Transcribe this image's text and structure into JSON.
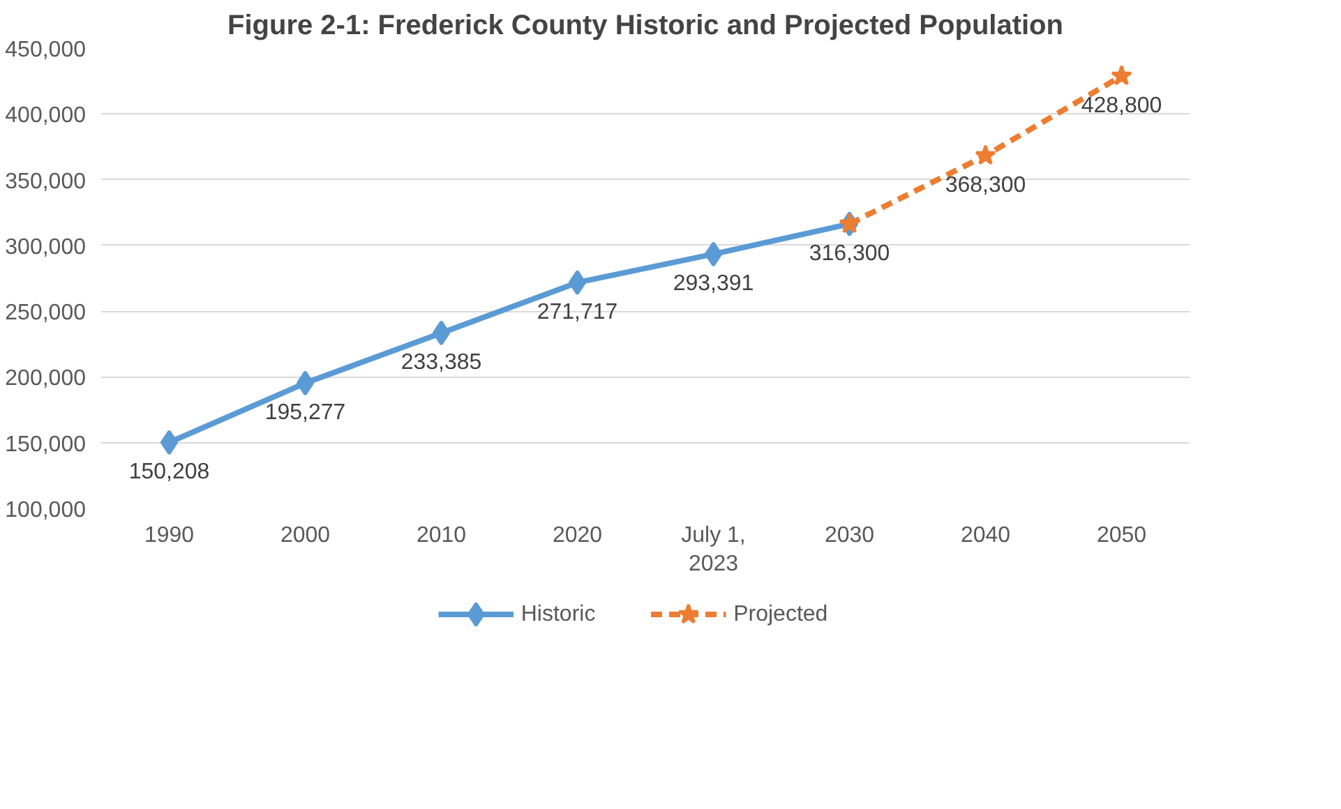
{
  "chart_data": {
    "type": "line",
    "title": "Figure 2-1: Frederick County Historic and Projected Population",
    "categories": [
      "1990",
      "2000",
      "2010",
      "2020",
      "July 1,\n2023",
      "2030",
      "2040",
      "2050"
    ],
    "series": [
      {
        "name": "Historic",
        "color": "#5b9bd5",
        "marker": "diamond",
        "line_style": "solid",
        "values": [
          150208,
          195277,
          233385,
          271717,
          293391,
          316300,
          null,
          null
        ],
        "value_labels": [
          "150,208",
          "195,277",
          "233,385",
          "271,717",
          "293,391",
          null,
          null,
          null
        ]
      },
      {
        "name": "Projected",
        "color": "#ed7d31",
        "marker": "star",
        "line_style": "dashed",
        "values": [
          null,
          null,
          null,
          null,
          null,
          316300,
          368300,
          428800
        ],
        "value_labels": [
          null,
          null,
          null,
          null,
          null,
          "316,300",
          "368,300",
          "428,800"
        ]
      }
    ],
    "ylim": [
      100000,
      450000
    ],
    "yticks": [
      {
        "value": 100000,
        "label": "100,000"
      },
      {
        "value": 150000,
        "label": "150,000"
      },
      {
        "value": 200000,
        "label": "200,000"
      },
      {
        "value": 250000,
        "label": "250,000"
      },
      {
        "value": 300000,
        "label": "300,000"
      },
      {
        "value": 350000,
        "label": "350,000"
      },
      {
        "value": 400000,
        "label": "400,000"
      },
      {
        "value": 450000,
        "label": "450,000"
      }
    ],
    "grid": "y",
    "legend": "bottom"
  }
}
